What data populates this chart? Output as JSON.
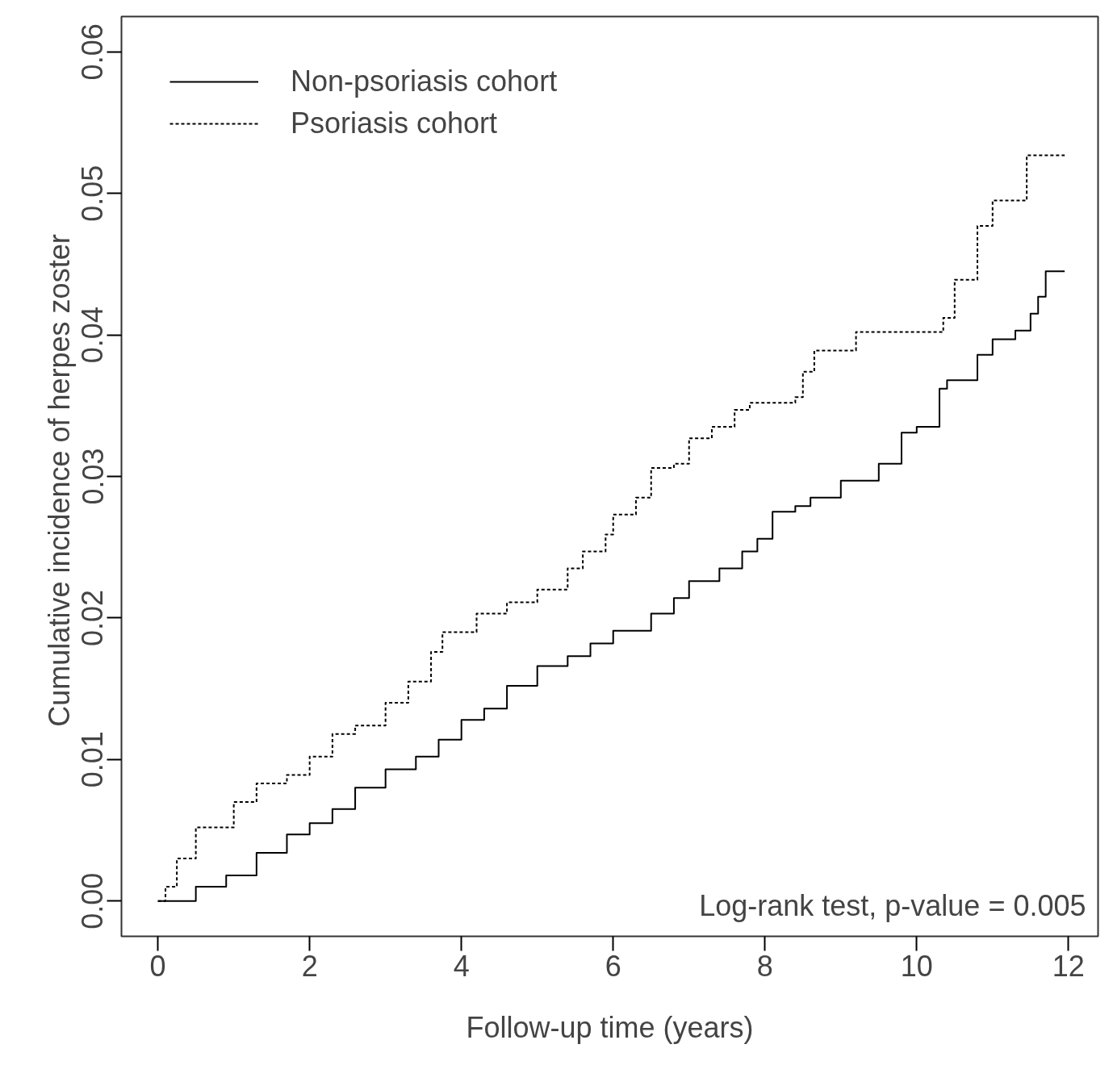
{
  "chart_data": {
    "type": "step",
    "xlabel": "Follow-up time (years)",
    "ylabel": "Cumulative incidence of  herpes zoster",
    "xlim": [
      -0.48,
      12.39
    ],
    "ylim": [
      -0.0025,
      0.0625
    ],
    "xticks": [
      0,
      2,
      4,
      6,
      8,
      10,
      12
    ],
    "yticks": [
      {
        "value": 0,
        "label": "0.00"
      },
      0.01,
      0.02,
      0.03,
      0.04,
      0.05,
      0.06
    ],
    "grid": false,
    "legend": "top left",
    "annotations": [
      "Log-rank test, p-value = 0.005"
    ],
    "series": [
      {
        "name": "Non-psoriasis cohort",
        "color": "#000000",
        "line_style": "solid",
        "x": [
          0,
          0.5,
          0.9,
          1.3,
          1.7,
          2.0,
          2.3,
          2.6,
          3.0,
          3.4,
          3.7,
          4.0,
          4.3,
          4.6,
          5.0,
          5.4,
          5.7,
          6.0,
          6.5,
          6.8,
          7.0,
          7.4,
          7.7,
          7.9,
          8.1,
          8.4,
          8.6,
          9.0,
          9.5,
          9.8,
          10.0,
          10.3,
          10.4,
          10.7,
          10.8,
          11.0,
          11.3,
          11.5,
          11.6,
          11.7,
          11.95
        ],
        "values": [
          0,
          0.001,
          0.0018,
          0.0034,
          0.0047,
          0.0055,
          0.0065,
          0.008,
          0.0093,
          0.0102,
          0.0114,
          0.0128,
          0.0136,
          0.0152,
          0.0166,
          0.0173,
          0.0182,
          0.0191,
          0.0203,
          0.0214,
          0.0226,
          0.0235,
          0.0247,
          0.0256,
          0.0275,
          0.0279,
          0.0285,
          0.0297,
          0.0309,
          0.0331,
          0.0335,
          0.0362,
          0.0368,
          0.0368,
          0.0386,
          0.0397,
          0.0403,
          0.0415,
          0.0427,
          0.0445,
          0.0445
        ]
      },
      {
        "name": "Psoriasis cohort",
        "color": "#000000",
        "line_style": "dashed",
        "x": [
          0,
          0.1,
          0.25,
          0.5,
          1.0,
          1.3,
          1.7,
          2.0,
          2.3,
          2.6,
          3.0,
          3.3,
          3.6,
          3.75,
          4.2,
          4.6,
          5.0,
          5.4,
          5.6,
          5.9,
          6.0,
          6.3,
          6.5,
          6.8,
          7.0,
          7.3,
          7.6,
          7.8,
          8.2,
          8.4,
          8.5,
          8.65,
          9.0,
          9.2,
          10.2,
          10.35,
          10.5,
          10.8,
          11.0,
          11.4,
          11.45,
          11.95
        ],
        "values": [
          0,
          0.001,
          0.003,
          0.0052,
          0.007,
          0.0083,
          0.0089,
          0.0102,
          0.0118,
          0.0124,
          0.014,
          0.0155,
          0.0176,
          0.019,
          0.0203,
          0.0211,
          0.022,
          0.0235,
          0.0247,
          0.0259,
          0.0273,
          0.0285,
          0.0306,
          0.0309,
          0.0327,
          0.0335,
          0.0347,
          0.0352,
          0.0352,
          0.0356,
          0.0374,
          0.0389,
          0.0389,
          0.0402,
          0.0402,
          0.0412,
          0.0439,
          0.0477,
          0.0495,
          0.0495,
          0.0527,
          0.0527
        ]
      }
    ]
  }
}
